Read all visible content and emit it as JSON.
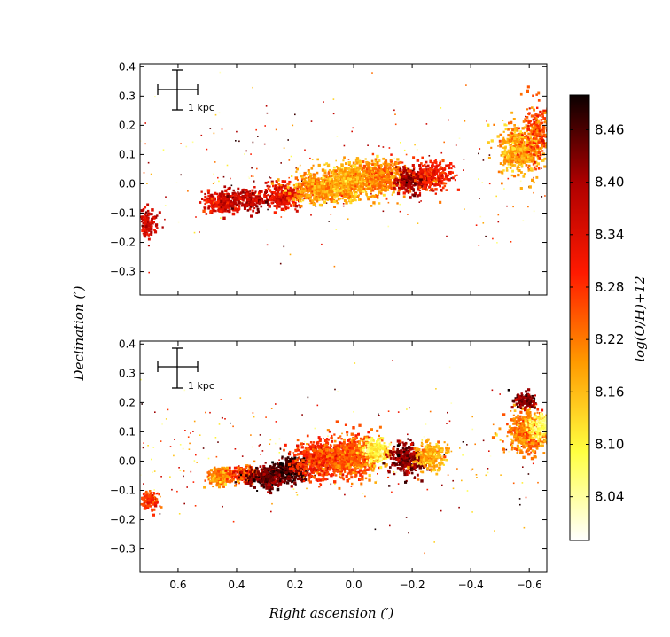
{
  "chart_data": {
    "type": "heatmap",
    "xlabel": "Right ascension (′)",
    "ylabel": "Declination (′)",
    "colorbar_label": "log(O/H)+12",
    "colormap": "hot_r",
    "colorbar_range": [
      7.99,
      8.5
    ],
    "colorbar_ticks": [
      8.04,
      8.1,
      8.16,
      8.22,
      8.28,
      8.34,
      8.4,
      8.46
    ],
    "xlim": [
      0.73,
      -0.66
    ],
    "ylim": [
      -0.38,
      0.41
    ],
    "x_ticks": [
      0.6,
      0.4,
      0.2,
      0.0,
      -0.2,
      -0.4,
      -0.6
    ],
    "y_ticks": [
      0.4,
      0.3,
      0.2,
      0.1,
      0.0,
      -0.1,
      -0.2,
      -0.3
    ],
    "scale_bar_label": "1 kpc",
    "panels": [
      {
        "name": "top",
        "blobs": [
          {
            "x": 0.71,
            "y": -0.13,
            "sx": 0.015,
            "sy": 0.025,
            "n": 40,
            "value": 8.36
          },
          {
            "x": 0.46,
            "y": -0.06,
            "sx": 0.025,
            "sy": 0.018,
            "n": 70,
            "value": 8.33
          },
          {
            "x": 0.37,
            "y": -0.05,
            "sx": 0.04,
            "sy": 0.02,
            "n": 80,
            "value": 8.38
          },
          {
            "x": 0.25,
            "y": -0.04,
            "sx": 0.03,
            "sy": 0.02,
            "n": 90,
            "value": 8.33
          },
          {
            "x": 0.12,
            "y": -0.01,
            "sx": 0.05,
            "sy": 0.025,
            "n": 200,
            "value": 8.2
          },
          {
            "x": 0.0,
            "y": 0.02,
            "sx": 0.05,
            "sy": 0.03,
            "n": 200,
            "value": 8.17
          },
          {
            "x": -0.1,
            "y": 0.03,
            "sx": 0.04,
            "sy": 0.03,
            "n": 130,
            "value": 8.22
          },
          {
            "x": -0.2,
            "y": 0.02,
            "sx": 0.03,
            "sy": 0.02,
            "n": 90,
            "value": 8.4
          },
          {
            "x": -0.27,
            "y": 0.03,
            "sx": 0.03,
            "sy": 0.025,
            "n": 80,
            "value": 8.3
          },
          {
            "x": -0.57,
            "y": 0.12,
            "sx": 0.04,
            "sy": 0.04,
            "n": 170,
            "value": 8.18
          },
          {
            "x": -0.62,
            "y": 0.18,
            "sx": 0.025,
            "sy": 0.05,
            "n": 70,
            "value": 8.26
          }
        ]
      },
      {
        "name": "bottom",
        "blobs": [
          {
            "x": 0.7,
            "y": -0.13,
            "sx": 0.012,
            "sy": 0.015,
            "n": 40,
            "value": 8.28
          },
          {
            "x": 0.46,
            "y": -0.05,
            "sx": 0.02,
            "sy": 0.015,
            "n": 80,
            "value": 8.2
          },
          {
            "x": 0.38,
            "y": -0.04,
            "sx": 0.025,
            "sy": 0.015,
            "n": 60,
            "value": 8.26
          },
          {
            "x": 0.29,
            "y": -0.05,
            "sx": 0.04,
            "sy": 0.018,
            "n": 120,
            "value": 8.44
          },
          {
            "x": 0.21,
            "y": -0.02,
            "sx": 0.03,
            "sy": 0.02,
            "n": 100,
            "value": 8.46
          },
          {
            "x": 0.11,
            "y": 0.01,
            "sx": 0.045,
            "sy": 0.03,
            "n": 200,
            "value": 8.28
          },
          {
            "x": 0.0,
            "y": 0.02,
            "sx": 0.045,
            "sy": 0.035,
            "n": 220,
            "value": 8.24
          },
          {
            "x": -0.07,
            "y": 0.04,
            "sx": 0.02,
            "sy": 0.02,
            "n": 80,
            "value": 8.1
          },
          {
            "x": -0.18,
            "y": 0.01,
            "sx": 0.03,
            "sy": 0.025,
            "n": 110,
            "value": 8.42
          },
          {
            "x": -0.26,
            "y": 0.02,
            "sx": 0.025,
            "sy": 0.025,
            "n": 90,
            "value": 8.18
          },
          {
            "x": -0.59,
            "y": 0.1,
            "sx": 0.035,
            "sy": 0.035,
            "n": 180,
            "value": 8.22
          },
          {
            "x": -0.63,
            "y": 0.12,
            "sx": 0.02,
            "sy": 0.02,
            "n": 60,
            "value": 8.08
          },
          {
            "x": -0.58,
            "y": 0.21,
            "sx": 0.02,
            "sy": 0.015,
            "n": 40,
            "value": 8.42
          }
        ]
      }
    ]
  }
}
